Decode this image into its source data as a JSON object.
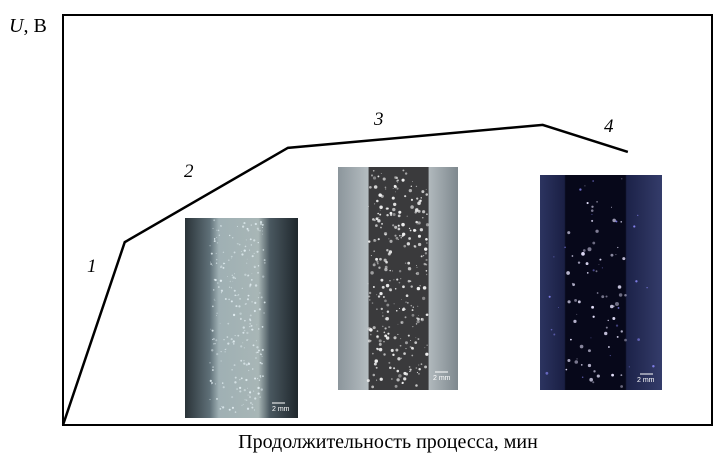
{
  "chart_data": {
    "type": "line",
    "y_label_symbol": "U",
    "y_label_unit": ", В",
    "x_label": "Продолжительность процесса, мин",
    "x": [
      0,
      9.5,
      34.6,
      73.8,
      86.9
    ],
    "series": [
      {
        "values": [
          0,
          44.6,
          67.6,
          73.2,
          66.6
        ],
        "color": "#000000"
      }
    ],
    "xlim": [
      0,
      100
    ],
    "ylim": [
      0,
      100
    ],
    "stage_labels": [
      "1",
      "2",
      "3",
      "4"
    ],
    "image_scale_labels": [
      "2 mm",
      "2 mm",
      "2 mm"
    ]
  }
}
